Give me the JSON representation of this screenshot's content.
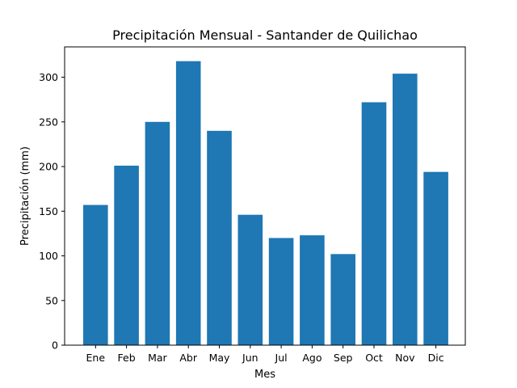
{
  "chart_data": {
    "type": "bar",
    "title": "Precipitación Mensual - Santander de Quilichao",
    "xlabel": "Mes",
    "ylabel": "Precipitación (mm)",
    "categories": [
      "Ene",
      "Feb",
      "Mar",
      "Abr",
      "May",
      "Jun",
      "Jul",
      "Ago",
      "Sep",
      "Oct",
      "Nov",
      "Dic"
    ],
    "values": [
      157,
      201,
      250,
      318,
      240,
      146,
      120,
      123,
      102,
      272,
      304,
      194
    ],
    "ylim": [
      0,
      334
    ],
    "yticks": [
      0,
      50,
      100,
      150,
      200,
      250,
      300
    ],
    "grid": false,
    "bar_color": "#1f77b4"
  }
}
